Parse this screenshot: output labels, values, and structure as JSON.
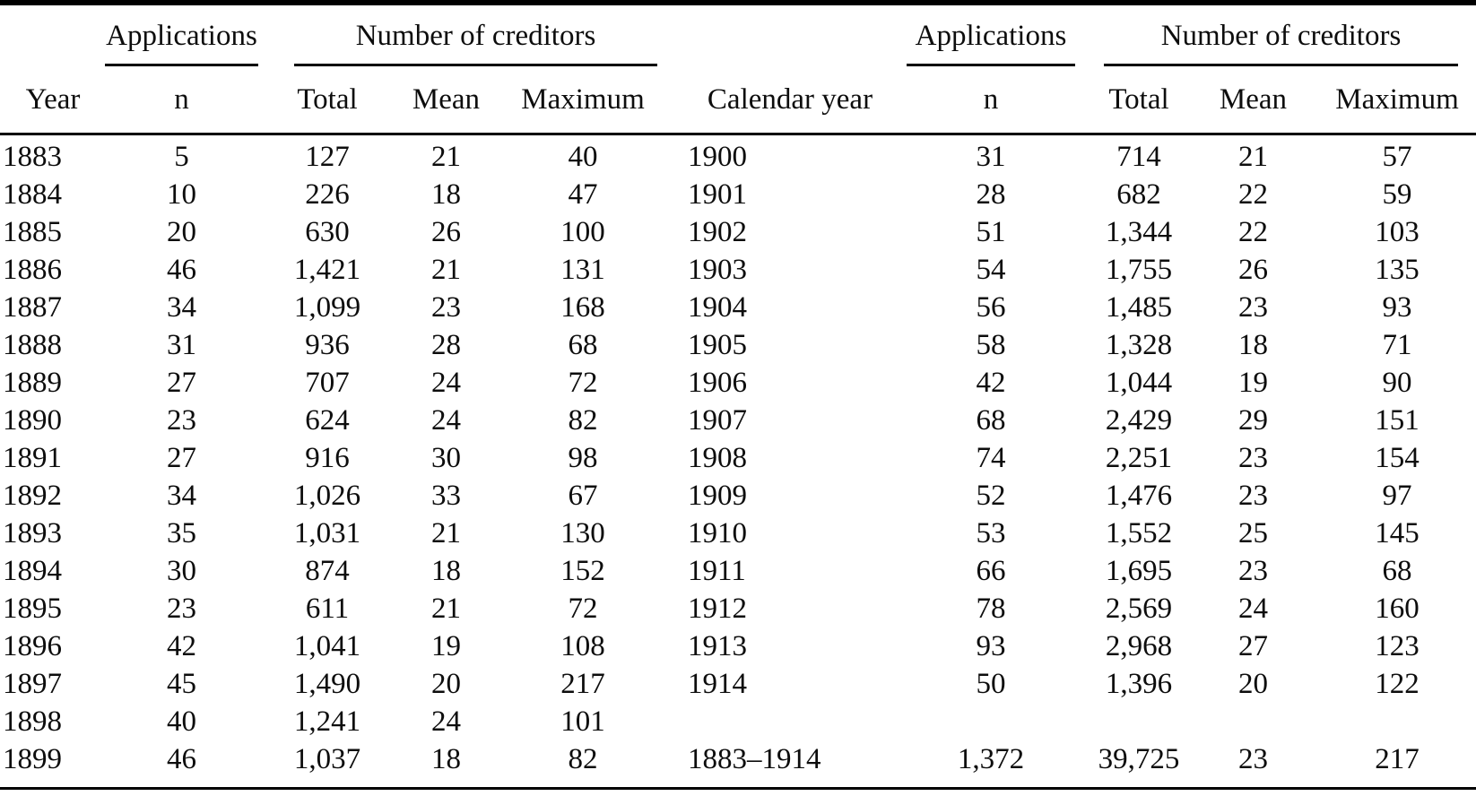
{
  "table": {
    "left": {
      "group_headers": {
        "applications": "Applications",
        "creditors": "Number of creditors"
      },
      "col_headers": {
        "year": "Year",
        "n": "n",
        "total": "Total",
        "mean": "Mean",
        "maximum": "Maximum"
      },
      "rows": [
        [
          "1883",
          "5",
          "127",
          "21",
          "40"
        ],
        [
          "1884",
          "10",
          "226",
          "18",
          "47"
        ],
        [
          "1885",
          "20",
          "630",
          "26",
          "100"
        ],
        [
          "1886",
          "46",
          "1,421",
          "21",
          "131"
        ],
        [
          "1887",
          "34",
          "1,099",
          "23",
          "168"
        ],
        [
          "1888",
          "31",
          "936",
          "28",
          "68"
        ],
        [
          "1889",
          "27",
          "707",
          "24",
          "72"
        ],
        [
          "1890",
          "23",
          "624",
          "24",
          "82"
        ],
        [
          "1891",
          "27",
          "916",
          "30",
          "98"
        ],
        [
          "1892",
          "34",
          "1,026",
          "33",
          "67"
        ],
        [
          "1893",
          "35",
          "1,031",
          "21",
          "130"
        ],
        [
          "1894",
          "30",
          "874",
          "18",
          "152"
        ],
        [
          "1895",
          "23",
          "611",
          "21",
          "72"
        ],
        [
          "1896",
          "42",
          "1,041",
          "19",
          "108"
        ],
        [
          "1897",
          "45",
          "1,490",
          "20",
          "217"
        ],
        [
          "1898",
          "40",
          "1,241",
          "24",
          "101"
        ],
        [
          "1899",
          "46",
          "1,037",
          "18",
          "82"
        ]
      ]
    },
    "right": {
      "group_headers": {
        "applications": "Applications",
        "creditors": "Number of creditors"
      },
      "col_headers": {
        "year": "Calendar year",
        "n": "n",
        "total": "Total",
        "mean": "Mean",
        "maximum": "Maximum"
      },
      "rows": [
        [
          "1900",
          "31",
          "714",
          "21",
          "57"
        ],
        [
          "1901",
          "28",
          "682",
          "22",
          "59"
        ],
        [
          "1902",
          "51",
          "1,344",
          "22",
          "103"
        ],
        [
          "1903",
          "54",
          "1,755",
          "26",
          "135"
        ],
        [
          "1904",
          "56",
          "1,485",
          "23",
          "93"
        ],
        [
          "1905",
          "58",
          "1,328",
          "18",
          "71"
        ],
        [
          "1906",
          "42",
          "1,044",
          "19",
          "90"
        ],
        [
          "1907",
          "68",
          "2,429",
          "29",
          "151"
        ],
        [
          "1908",
          "74",
          "2,251",
          "23",
          "154"
        ],
        [
          "1909",
          "52",
          "1,476",
          "23",
          "97"
        ],
        [
          "1910",
          "53",
          "1,552",
          "25",
          "145"
        ],
        [
          "1911",
          "66",
          "1,695",
          "23",
          "68"
        ],
        [
          "1912",
          "78",
          "2,569",
          "24",
          "160"
        ],
        [
          "1913",
          "93",
          "2,968",
          "27",
          "123"
        ],
        [
          "1914",
          "50",
          "1,396",
          "20",
          "122"
        ]
      ],
      "summary_row": [
        "1883–1914",
        "1,372",
        "39,725",
        "23",
        "217"
      ]
    },
    "colors": {
      "background": "#ffffff",
      "text": "#0d0d0d",
      "rule": "#000000"
    }
  }
}
